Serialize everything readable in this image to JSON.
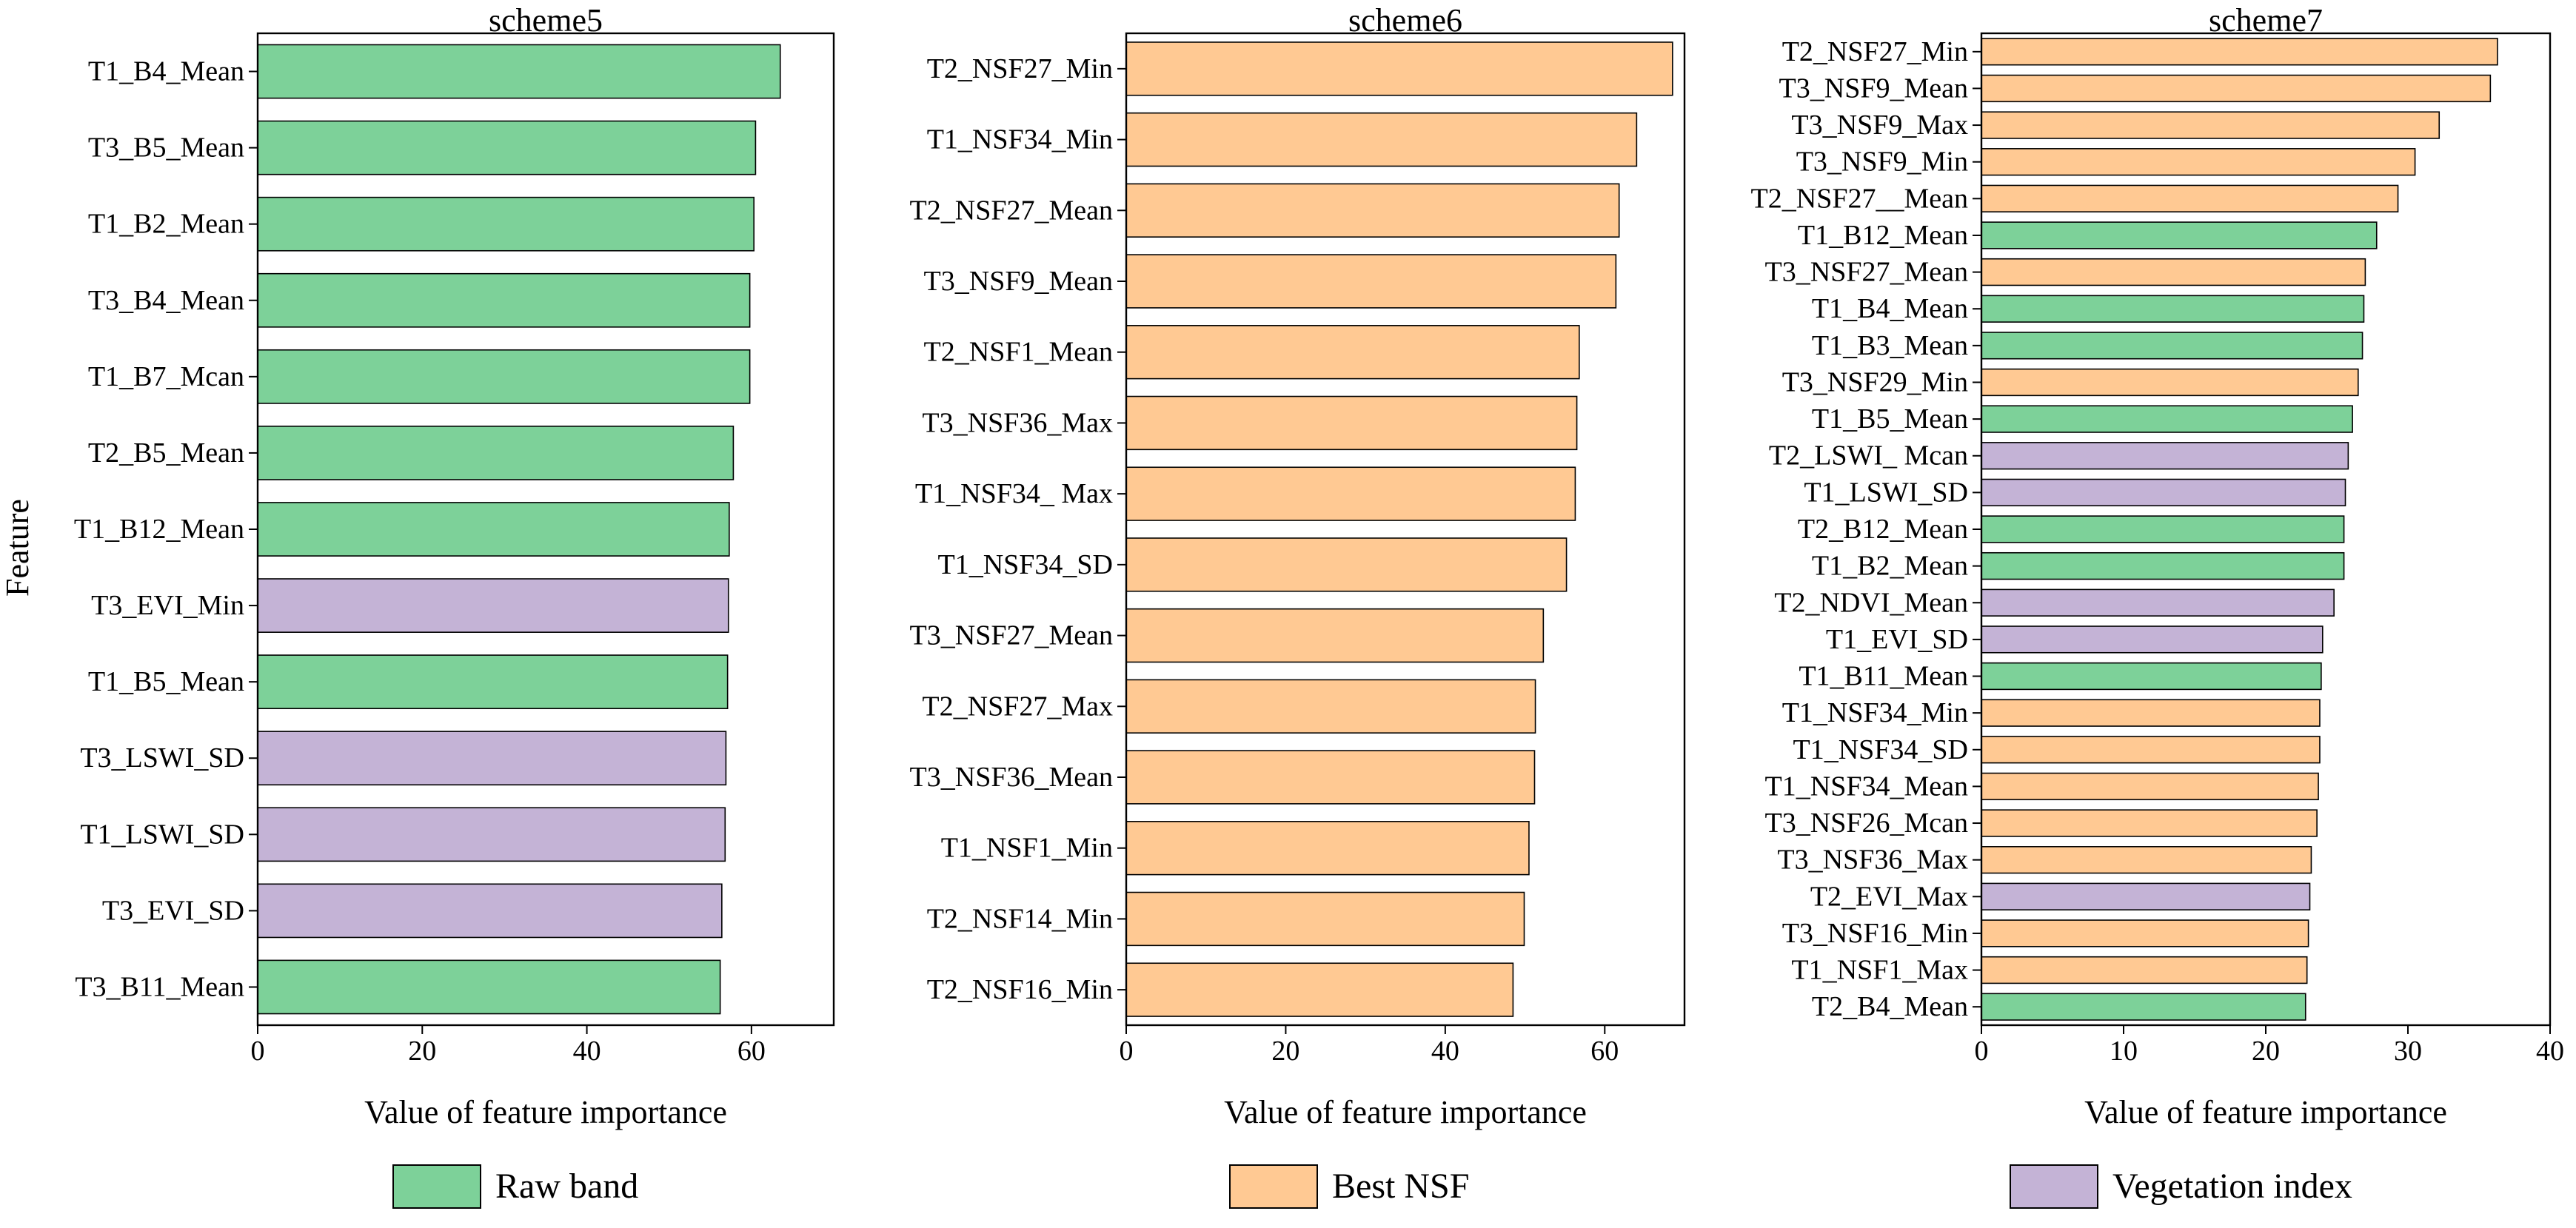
{
  "figure": {
    "ylabel": "Feature",
    "legend": [
      {
        "key": "raw",
        "label": "Raw band",
        "color": "#7dd199"
      },
      {
        "key": "nsf",
        "label": "Best NSF",
        "color": "#ffc993"
      },
      {
        "key": "vi",
        "label": "Vegetation index",
        "color": "#c4b3d6"
      }
    ]
  },
  "chart_data": [
    {
      "type": "bar",
      "orientation": "horizontal",
      "title": "scheme5",
      "xlabel": "Value of feature importance",
      "ylabel": "Feature",
      "xlim": [
        0,
        70
      ],
      "xticks": [
        0,
        20,
        40,
        60
      ],
      "categories": [
        "T1_B4_Mean",
        "T3_B5_Mean",
        "T1_B2_Mean",
        "T3_B4_Mean",
        "T1_B7_Mcan",
        "T2_B5_Mean",
        "T1_B12_Mean",
        "T3_EVI_Min",
        "T1_B5_Mean",
        "T3_LSWI_SD",
        "T1_LSWI_SD",
        "T3_EVI_SD",
        "T3_B11_Mean"
      ],
      "values": [
        63.5,
        60.5,
        60.3,
        59.8,
        59.8,
        57.8,
        57.3,
        57.2,
        57.1,
        56.9,
        56.8,
        56.4,
        56.2
      ],
      "groups": [
        "raw",
        "raw",
        "raw",
        "raw",
        "raw",
        "raw",
        "raw",
        "vi",
        "raw",
        "vi",
        "vi",
        "vi",
        "raw"
      ]
    },
    {
      "type": "bar",
      "orientation": "horizontal",
      "title": "scheme6",
      "xlabel": "Value of feature importance",
      "xlim": [
        0,
        70
      ],
      "xticks": [
        0,
        20,
        40,
        60
      ],
      "categories": [
        "T2_NSF27_Min",
        "T1_NSF34_Min",
        "T2_NSF27_Mean",
        "T3_NSF9_Mean",
        "T2_NSF1_Mean",
        "T3_NSF36_Max",
        "T1_NSF34_ Max",
        "T1_NSF34_SD",
        "T3_NSF27_Mean",
        "T2_NSF27_Max",
        "T3_NSF36_Mean",
        "T1_NSF1_Min",
        "T2_NSF14_Min",
        "T2_NSF16_Min"
      ],
      "values": [
        68.5,
        64.0,
        61.8,
        61.4,
        56.8,
        56.5,
        56.3,
        55.2,
        52.3,
        51.3,
        51.2,
        50.5,
        49.9,
        48.5
      ],
      "groups": [
        "nsf",
        "nsf",
        "nsf",
        "nsf",
        "nsf",
        "nsf",
        "nsf",
        "nsf",
        "nsf",
        "nsf",
        "nsf",
        "nsf",
        "nsf",
        "nsf"
      ]
    },
    {
      "type": "bar",
      "orientation": "horizontal",
      "title": "scheme7",
      "xlabel": "Value of feature importance",
      "xlim": [
        0,
        40
      ],
      "xticks": [
        0,
        10,
        20,
        30,
        40
      ],
      "categories": [
        "T2_NSF27_Min",
        "T3_NSF9_Mean",
        "T3_NSF9_Max",
        "T3_NSF9_Min",
        "T2_NSF27__Mean",
        "T1_B12_Mean",
        "T3_NSF27_Mean",
        "T1_B4_Mean",
        "T1_B3_Mean",
        "T3_NSF29_Min",
        "T1_B5_Mean",
        "T2_LSWI_ Mcan",
        "T1_LSWI_SD",
        "T2_B12_Mean",
        "T1_B2_Mean",
        "T2_NDVI_Mean",
        "T1_EVI_SD",
        "T1_B11_Mean",
        "T1_NSF34_Min",
        "T1_NSF34_SD",
        "T1_NSF34_Mean",
        "T3_NSF26_Mcan",
        "T3_NSF36_Max",
        "T2_EVI_Max",
        "T3_NSF16_Min",
        "T1_NSF1_Max",
        "T2_B4_Mean"
      ],
      "values": [
        36.3,
        35.8,
        32.2,
        30.5,
        29.3,
        27.8,
        27.0,
        26.9,
        26.8,
        26.5,
        26.1,
        25.8,
        25.6,
        25.5,
        25.5,
        24.8,
        24.0,
        23.9,
        23.8,
        23.8,
        23.7,
        23.6,
        23.2,
        23.1,
        23.0,
        22.9,
        22.8
      ],
      "groups": [
        "nsf",
        "nsf",
        "nsf",
        "nsf",
        "nsf",
        "raw",
        "nsf",
        "raw",
        "raw",
        "nsf",
        "raw",
        "vi",
        "vi",
        "raw",
        "raw",
        "vi",
        "vi",
        "raw",
        "nsf",
        "nsf",
        "nsf",
        "nsf",
        "nsf",
        "vi",
        "nsf",
        "nsf",
        "raw"
      ]
    }
  ]
}
